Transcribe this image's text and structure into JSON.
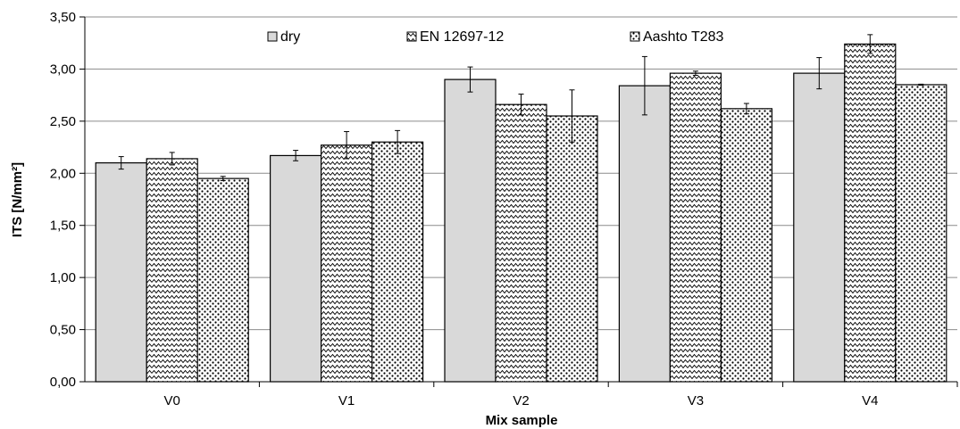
{
  "chart_data": {
    "type": "bar",
    "title": "",
    "xlabel": "Mix sample",
    "ylabel": "ITS [N/mm²]",
    "ylim": [
      0,
      3.5
    ],
    "ytick_step": 0.5,
    "ytick_labels": [
      "0,00",
      "0,50",
      "1,00",
      "1,50",
      "2,00",
      "2,50",
      "3,00",
      "3,50"
    ],
    "grid": "horizontal",
    "legend_position": "top-inside",
    "categories": [
      "V0",
      "V1",
      "V2",
      "V3",
      "V4"
    ],
    "series": [
      {
        "name": "dry",
        "pattern": "solid-gray",
        "color": "#d9d9d9",
        "values": [
          2.1,
          2.17,
          2.9,
          2.84,
          2.96
        ],
        "error": [
          0.06,
          0.05,
          0.12,
          0.28,
          0.15
        ]
      },
      {
        "name": "EN 12697-12",
        "pattern": "zigzag",
        "color": "#000000",
        "values": [
          2.14,
          2.27,
          2.66,
          2.96,
          3.24
        ],
        "error": [
          0.06,
          0.13,
          0.1,
          0.02,
          0.09
        ]
      },
      {
        "name": "Aashto T283",
        "pattern": "dots",
        "color": "#000000",
        "values": [
          1.95,
          2.3,
          2.55,
          2.62,
          2.85
        ],
        "error": [
          0.02,
          0.11,
          0.25,
          0.05,
          0.005
        ]
      }
    ]
  }
}
